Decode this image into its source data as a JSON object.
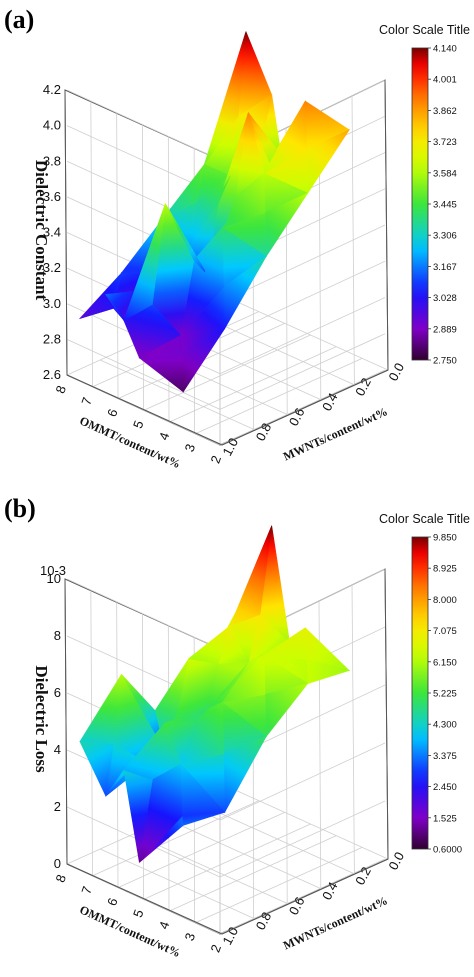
{
  "chart_data": [
    {
      "panel_label": "(a)",
      "type": "surface3d",
      "ylabel": "Dielectric Constant",
      "x_axis_label": "OMMT/content/wt%",
      "y_axis_label": "MWNTs/content/wt%",
      "x_ticks": [
        "8",
        "7",
        "6",
        "5",
        "4",
        "3",
        "2"
      ],
      "y_ticks": [
        "0.0",
        "0.2",
        "0.4",
        "0.6",
        "0.8",
        "1.0"
      ],
      "z_ticks": [
        "2.6",
        "2.8",
        "3.0",
        "3.2",
        "3.4",
        "3.6",
        "3.8",
        "4.0",
        "4.2"
      ],
      "z_exponent": "",
      "zlim": [
        2.6,
        4.2
      ],
      "colorbar_title": "Color Scale Title",
      "colorbar_ticks": [
        "4.140",
        "4.001",
        "3.862",
        "3.723",
        "3.584",
        "3.445",
        "3.306",
        "3.167",
        "3.028",
        "2.889",
        "2.750"
      ],
      "colorbar_range": [
        2.75,
        4.14
      ],
      "points": [
        [
          7.5,
          0.0,
          4.14
        ],
        [
          6.5,
          0.0,
          3.85
        ],
        [
          5.8,
          0.0,
          3.25
        ],
        [
          5.2,
          0.0,
          3.9
        ],
        [
          3.5,
          0.0,
          3.85
        ],
        [
          7.5,
          0.25,
          3.5
        ],
        [
          6.5,
          0.25,
          3.5
        ],
        [
          5.8,
          0.25,
          3.9
        ],
        [
          5.2,
          0.25,
          3.6
        ],
        [
          3.5,
          0.25,
          3.6
        ],
        [
          7.5,
          0.5,
          3.3
        ],
        [
          6.5,
          0.5,
          3.2
        ],
        [
          5.8,
          0.5,
          3.1
        ],
        [
          5.2,
          0.5,
          3.4
        ],
        [
          3.5,
          0.5,
          3.35
        ],
        [
          7.5,
          0.75,
          3.1
        ],
        [
          6.5,
          0.75,
          2.75
        ],
        [
          5.8,
          0.75,
          3.6
        ],
        [
          5.2,
          0.75,
          2.9
        ],
        [
          3.5,
          0.75,
          3.05
        ],
        [
          7.5,
          1.0,
          2.95
        ],
        [
          6.5,
          1.0,
          3.15
        ],
        [
          5.8,
          1.0,
          3.05
        ],
        [
          5.2,
          1.0,
          2.88
        ],
        [
          3.5,
          1.0,
          2.8
        ]
      ]
    },
    {
      "panel_label": "(b)",
      "type": "surface3d",
      "ylabel": "Dielectric Loss",
      "x_axis_label": "OMMT/content/wt%",
      "y_axis_label": "MWNTs/content/wt%",
      "x_ticks": [
        "8",
        "7",
        "6",
        "5",
        "4",
        "3",
        "2"
      ],
      "y_ticks": [
        "0.0",
        "0.2",
        "0.4",
        "0.6",
        "0.8",
        "1.0"
      ],
      "z_ticks": [
        "0",
        "2",
        "4",
        "6",
        "8",
        "10"
      ],
      "z_exponent": "10-3",
      "zlim": [
        0,
        10
      ],
      "colorbar_title": "Color Scale Title",
      "colorbar_ticks": [
        "9.850",
        "8.925",
        "8.000",
        "7.075",
        "6.150",
        "5.225",
        "4.300",
        "3.375",
        "2.450",
        "1.525",
        "0.6000"
      ],
      "colorbar_range": [
        0.6,
        9.85
      ],
      "points": [
        [
          7.5,
          0.0,
          6.5
        ],
        [
          6.5,
          0.0,
          9.85
        ],
        [
          5.8,
          0.0,
          6.0
        ],
        [
          5.2,
          0.0,
          6.8
        ],
        [
          3.5,
          0.0,
          6.0
        ],
        [
          7.5,
          0.25,
          5.0
        ],
        [
          6.5,
          0.25,
          7.0
        ],
        [
          5.8,
          0.25,
          6.0
        ],
        [
          5.2,
          0.25,
          6.5
        ],
        [
          3.5,
          0.25,
          6.2
        ],
        [
          7.5,
          0.5,
          3.0
        ],
        [
          6.5,
          0.5,
          6.5
        ],
        [
          5.8,
          0.5,
          5.0
        ],
        [
          5.2,
          0.5,
          5.5
        ],
        [
          3.5,
          0.5,
          5.0
        ],
        [
          7.5,
          0.75,
          6.2
        ],
        [
          6.5,
          0.75,
          3.5
        ],
        [
          5.8,
          0.75,
          5.2
        ],
        [
          5.2,
          0.75,
          4.0
        ],
        [
          3.5,
          0.75,
          3.0
        ],
        [
          7.5,
          1.0,
          4.5
        ],
        [
          6.5,
          1.0,
          3.0
        ],
        [
          5.8,
          1.0,
          4.2
        ],
        [
          5.2,
          1.0,
          1.2
        ],
        [
          3.5,
          1.0,
          3.2
        ]
      ]
    }
  ]
}
